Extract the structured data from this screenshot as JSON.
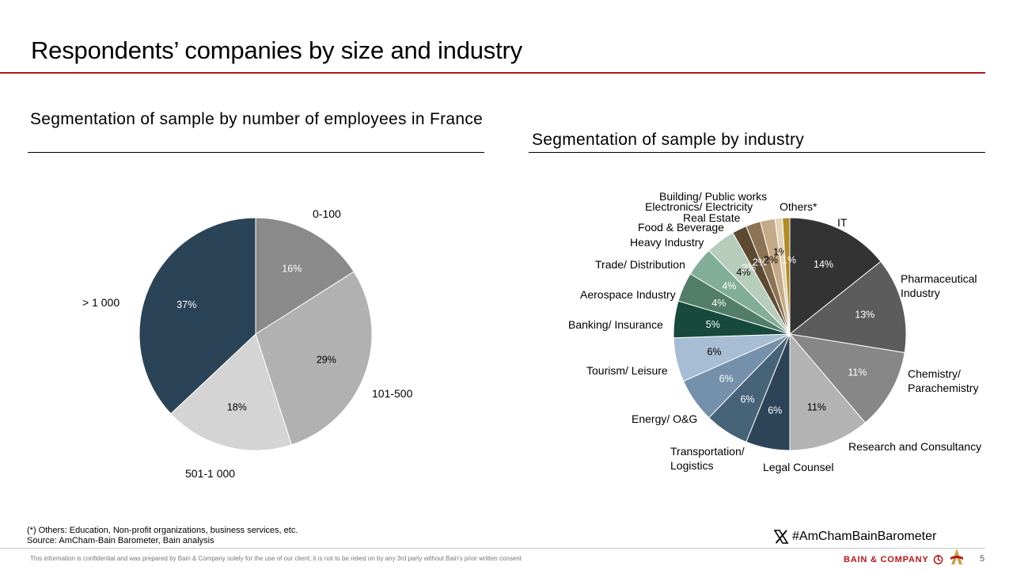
{
  "page": {
    "title": "Respondents’ companies by size and industry",
    "footnote_others": "(*) Others: Education, Non-profit organizations, business services, etc.",
    "source": "Source: AmCham-Bain Barometer, Bain analysis",
    "confidential": "This information is confidential and was prepared by Bain & Company solely for the use of our client; it is not to be relied on by any 3rd party without Bain's prior written consent",
    "hashtag": "#AmChamBainBarometer",
    "brand": "BAIN & COMPANY",
    "page_number": "5",
    "icons": [
      "x-logo-icon",
      "bain-logo-icon",
      "amcham-logo-icon"
    ],
    "accent_color": "#b0181c"
  },
  "chart_data": [
    {
      "type": "pie",
      "title": "Segmentation of sample by number of employees in France",
      "categories": [
        "0-100",
        "101-500",
        "501-1 000",
        "> 1 000"
      ],
      "values": [
        16,
        29,
        18,
        37
      ],
      "value_labels": [
        "16%",
        "29%",
        "18%",
        "37%"
      ],
      "colors": [
        "#8a8a8a",
        "#b1b1b1",
        "#d4d4d4",
        "#2b4356"
      ],
      "label_colors": [
        "#ffffff",
        "#000000",
        "#000000",
        "#ffffff"
      ],
      "start": "12 o'clock, clockwise"
    },
    {
      "type": "pie",
      "title": "Segmentation of sample by industry",
      "categories": [
        "IT",
        "Pharmaceutical Industry",
        "Chemistry/ Parachemistry",
        "Research and Consultancy",
        "Legal Counsel",
        "Transportation/ Logistics",
        "Energy/ O&G",
        "Tourism/ Leisure",
        "Banking/ Insurance",
        "Aerospace Industry",
        "Trade/ Distribution",
        "Heavy Industry",
        "Food & Beverage",
        "Real Estate",
        "Electronics/ Electricity",
        "Building/ Public works",
        "Others*"
      ],
      "values": [
        14,
        13,
        11,
        11,
        6,
        6,
        6,
        6,
        5,
        4,
        4,
        4,
        2,
        2,
        2,
        1,
        1
      ],
      "value_labels": [
        "14%",
        "13%",
        "11%",
        "11%",
        "6%",
        "6%",
        "6%",
        "6%",
        "5%",
        "4%",
        "4%",
        "4%",
        "2%",
        "2%",
        "2%",
        "1%",
        "1%"
      ],
      "colors": [
        "#333333",
        "#5c5c5c",
        "#878787",
        "#b3b3b3",
        "#2d4458",
        "#466378",
        "#7590aa",
        "#a7bdd3",
        "#174a3c",
        "#527d69",
        "#82ad98",
        "#b8ccbc",
        "#5c4a33",
        "#8d7355",
        "#c4aa88",
        "#e2d3b5",
        "#b08a2b"
      ],
      "label_colors": [
        "#ffffff",
        "#ffffff",
        "#ffffff",
        "#000000",
        "#ffffff",
        "#ffffff",
        "#ffffff",
        "#000000",
        "#ffffff",
        "#ffffff",
        "#ffffff",
        "#000000",
        "#ffffff",
        "#ffffff",
        "#000000",
        "#000000",
        "#ffffff"
      ],
      "start": "12 o'clock, clockwise"
    }
  ]
}
